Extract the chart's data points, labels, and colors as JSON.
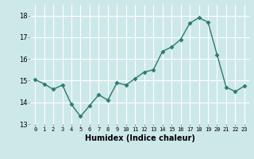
{
  "x": [
    0,
    1,
    2,
    3,
    4,
    5,
    6,
    7,
    8,
    9,
    10,
    11,
    12,
    13,
    14,
    15,
    16,
    17,
    18,
    19,
    20,
    21,
    22,
    23
  ],
  "y": [
    15.05,
    14.85,
    14.6,
    14.8,
    13.9,
    13.35,
    13.85,
    14.35,
    14.1,
    14.9,
    14.8,
    15.1,
    15.4,
    15.5,
    16.35,
    16.55,
    16.9,
    17.65,
    17.9,
    17.7,
    16.2,
    14.7,
    14.5,
    14.75
  ],
  "xlabel": "Humidex (Indice chaleur)",
  "ylim": [
    13,
    18.5
  ],
  "xlim": [
    -0.5,
    23.5
  ],
  "yticks": [
    13,
    14,
    15,
    16,
    17,
    18
  ],
  "xticks": [
    0,
    1,
    2,
    3,
    4,
    5,
    6,
    7,
    8,
    9,
    10,
    11,
    12,
    13,
    14,
    15,
    16,
    17,
    18,
    19,
    20,
    21,
    22,
    23
  ],
  "line_color": "#2d7a6e",
  "marker_color": "#2d7a6e",
  "bg_color": "#cde8e8",
  "grid_color": "#ffffff",
  "xlabel_fontsize": 7,
  "xlabel_fontweight": "bold",
  "ytick_fontsize": 6,
  "xtick_fontsize": 5,
  "linewidth": 1.0,
  "markersize": 2.5
}
